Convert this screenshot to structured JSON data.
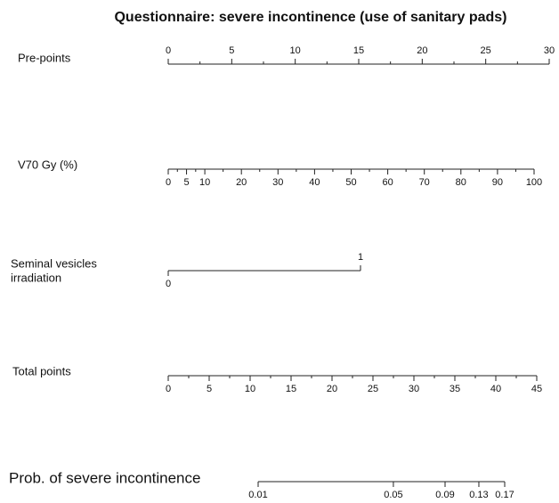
{
  "chart_data": {
    "type": "nomogram",
    "title": "Questionnaire: severe incontinence (use of sanitary pads)",
    "axes": [
      {
        "label": [
          "Pre-points"
        ],
        "scale": "linear",
        "xlim": [
          0,
          30
        ],
        "xticks": [
          0,
          5,
          10,
          15,
          20,
          25,
          30
        ]
      },
      {
        "label": [
          "V70 Gy (%)"
        ],
        "scale": "linear",
        "xlim": [
          0,
          100
        ],
        "xticks": [
          0,
          5,
          10,
          20,
          30,
          40,
          50,
          60,
          70,
          80,
          90,
          100
        ]
      },
      {
        "label": [
          "Seminal vesicles",
          "irradiation"
        ],
        "scale": "linear",
        "xlim": [
          0,
          1
        ],
        "xticks": [
          0,
          1
        ]
      },
      {
        "label": [
          "Total points"
        ],
        "scale": "linear",
        "xlim": [
          0,
          45
        ],
        "xticks": [
          0,
          5,
          10,
          15,
          20,
          25,
          30,
          35,
          40,
          45
        ]
      },
      {
        "label": [
          "Prob. of severe incontinence"
        ],
        "scale": "logit",
        "xlim": [
          0.01,
          0.17
        ],
        "xticks": [
          0.01,
          0.05,
          0.09,
          0.13,
          0.17
        ]
      }
    ]
  }
}
